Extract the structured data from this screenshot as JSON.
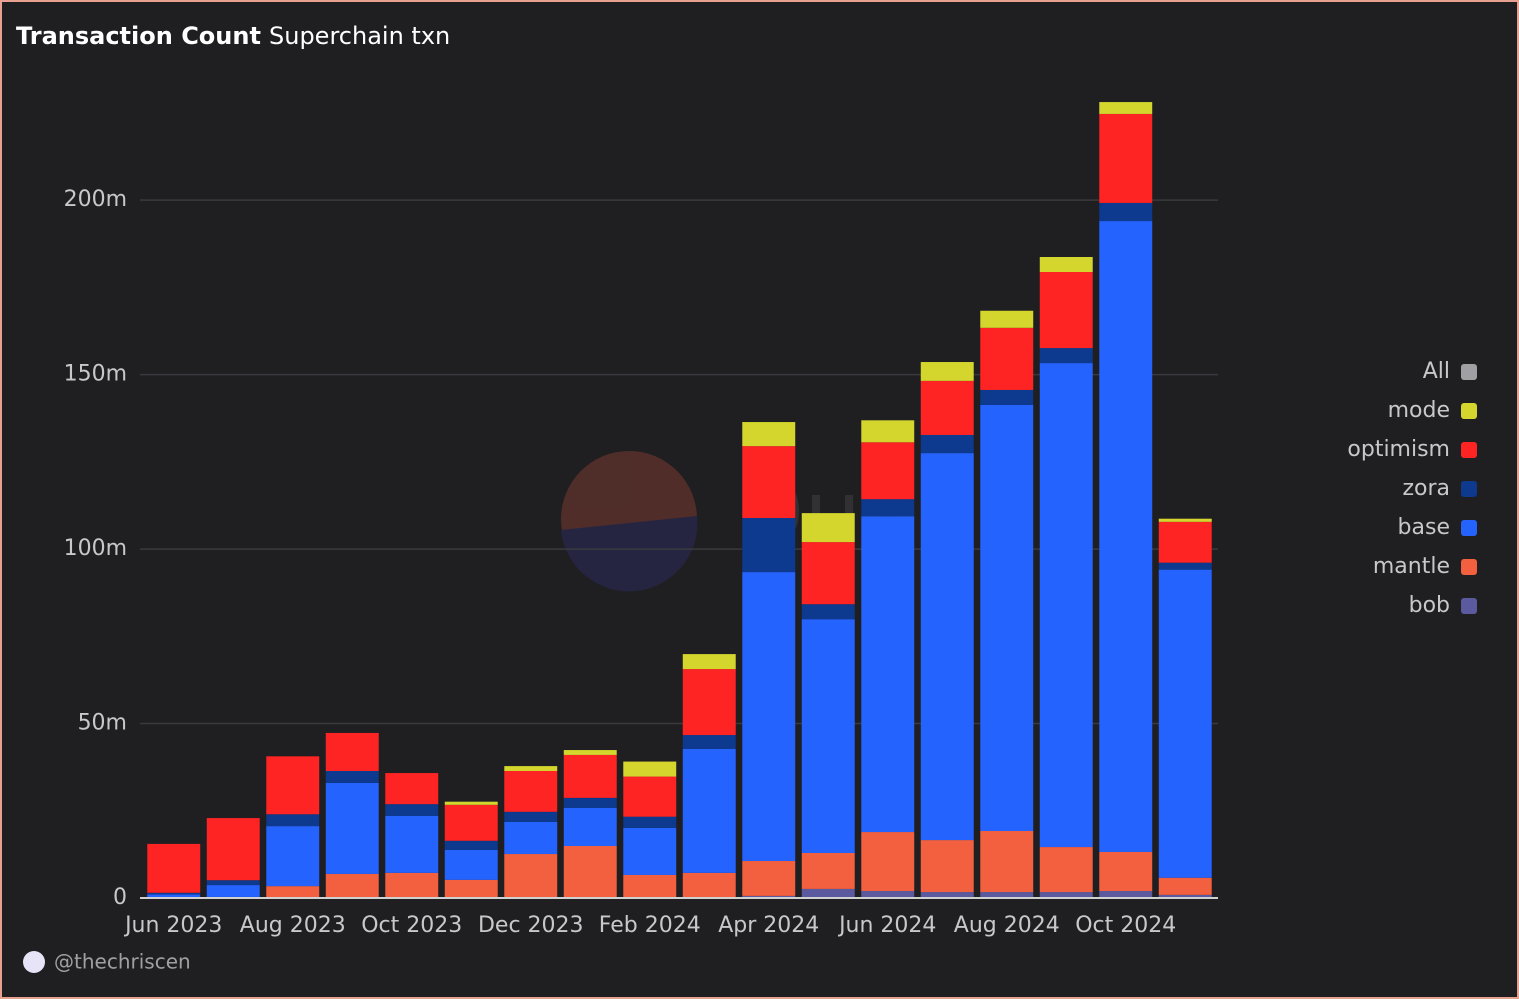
{
  "chart_data": {
    "type": "stacked_bar",
    "title": "Transaction Count",
    "subtitle": "Superchain txn",
    "categories": [
      "Jun 2023",
      null,
      "Aug 2023",
      null,
      "Oct 2023",
      null,
      "Dec 2023",
      null,
      "Feb 2024",
      null,
      "Apr 2024",
      null,
      "Jun 2024",
      null,
      "Aug 2024",
      null,
      "Oct 2024",
      null
    ],
    "series": [
      {
        "name": "bob",
        "color": "#5b5a9e",
        "values": [
          0,
          0,
          0,
          0,
          0,
          0,
          0,
          0,
          0,
          0,
          0.6,
          2.6,
          2.0,
          1.7,
          1.7,
          1.7,
          2.0,
          0.9
        ]
      },
      {
        "name": "mantle",
        "color": "#f26040",
        "values": [
          0,
          0.3,
          3.4,
          6.9,
          7.2,
          5.2,
          12.6,
          14.9,
          6.6,
          7.2,
          10.0,
          10.3,
          16.9,
          14.9,
          17.5,
          12.9,
          11.2,
          4.9
        ]
      },
      {
        "name": "base",
        "color": "#2563ff",
        "values": [
          1.0,
          3.4,
          17.2,
          26.1,
          16.3,
          8.6,
          9.2,
          10.9,
          13.5,
          35.5,
          82.8,
          67.0,
          90.5,
          110.9,
          122.1,
          138.7,
          180.8,
          88.3
        ]
      },
      {
        "name": "zora",
        "color": "#0d3a8f",
        "values": [
          0.5,
          1.4,
          3.4,
          3.4,
          3.4,
          2.6,
          2.9,
          2.9,
          3.2,
          4.0,
          15.5,
          4.3,
          4.9,
          5.2,
          4.3,
          4.3,
          5.2,
          2.0
        ]
      },
      {
        "name": "optimism",
        "color": "#ff2424",
        "values": [
          14.0,
          17.8,
          16.6,
          10.9,
          8.9,
          10.3,
          11.7,
          12.3,
          11.5,
          18.9,
          20.6,
          17.8,
          16.3,
          15.5,
          17.8,
          21.8,
          25.5,
          11.7
        ]
      },
      {
        "name": "mode",
        "color": "#d4d62e",
        "values": [
          0,
          0,
          0,
          0,
          0,
          0.9,
          1.4,
          1.4,
          4.3,
          4.3,
          6.9,
          8.3,
          6.3,
          5.4,
          4.9,
          4.3,
          3.4,
          0.9
        ]
      }
    ],
    "legend_all": {
      "name": "All",
      "color": "#a0a0a4"
    },
    "ylim": [
      0,
      235
    ],
    "yticks": [
      0,
      {
        "value": 50,
        "label": "50m"
      },
      {
        "value": 100,
        "label": "100m"
      },
      {
        "value": 150,
        "label": "150m"
      },
      {
        "value": 200,
        "label": "200m"
      }
    ],
    "grid": true,
    "legend": "right",
    "watermark": "Dune",
    "author": "@thechriscen"
  }
}
